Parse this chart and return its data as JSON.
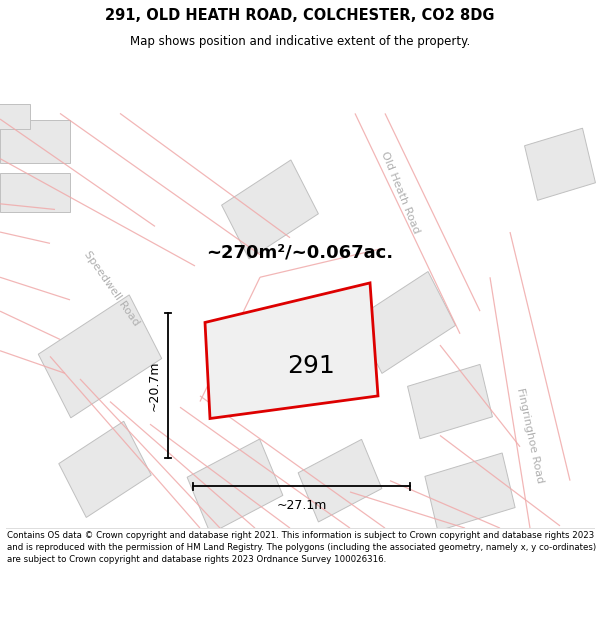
{
  "title": "291, OLD HEATH ROAD, COLCHESTER, CO2 8DG",
  "subtitle": "Map shows position and indicative extent of the property.",
  "footer": "Contains OS data © Crown copyright and database right 2021. This information is subject to Crown copyright and database rights 2023 and is reproduced with the permission of HM Land Registry. The polygons (including the associated geometry, namely x, y co-ordinates) are subject to Crown copyright and database rights 2023 Ordnance Survey 100026316.",
  "area_text": "~270m²/~0.067ac.",
  "property_number": "291",
  "dim_width": "~27.1m",
  "dim_height": "~20.7m",
  "bg_color": "#ffffff",
  "road_label_speedwell": "Speedwell Road",
  "road_label_old_heath": "Old Heath Road",
  "road_label_fingringhoe": "Fingringhoe Road"
}
